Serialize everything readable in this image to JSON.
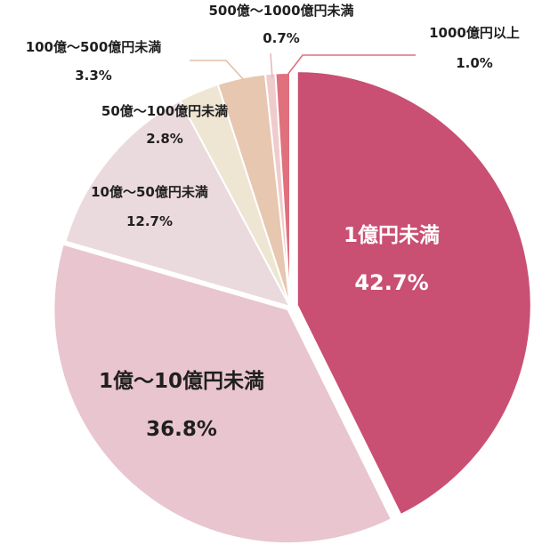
{
  "chart_data": {
    "type": "pie",
    "title": "",
    "legend": "none",
    "start": "12 o'clock, clockwise",
    "slices": [
      {
        "label": "1億円未満",
        "value": 42.7,
        "value_label": "42.7%",
        "color": "#c94f73"
      },
      {
        "label": "1億～10億円未満",
        "value": 36.8,
        "value_label": "36.8%",
        "color": "#e8c5cf"
      },
      {
        "label": "10億～50億円未満",
        "value": 12.7,
        "value_label": "12.7%",
        "color": "#ebdadd"
      },
      {
        "label": "50億～100億円未満",
        "value": 2.8,
        "value_label": "2.8%",
        "color": "#eee6d3"
      },
      {
        "label": "100億～500億円未満",
        "value": 3.3,
        "value_label": "3.3%",
        "color": "#e7c7af"
      },
      {
        "label": "500億～1000億円未満",
        "value": 0.7,
        "value_label": "0.7%",
        "color": "#f0cbcd"
      },
      {
        "label": "1000億円以上",
        "value": 1.0,
        "value_label": "1.0%",
        "color": "#e0707c"
      }
    ]
  }
}
